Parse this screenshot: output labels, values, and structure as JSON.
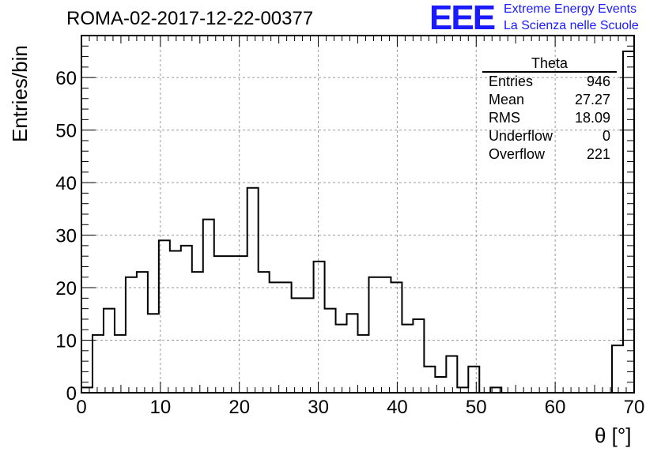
{
  "header": {
    "title": "ROMA-02-2017-12-22-00377",
    "logo_text": "EEE",
    "logo_line1": "Extreme Energy Events",
    "logo_line2": "La Scienza nelle Scuole"
  },
  "colors": {
    "logo": "#1a1aff",
    "grid": "#9a9a9a",
    "hist": "#000000"
  },
  "stats": {
    "title": "Theta",
    "rows": [
      {
        "label": "Entries",
        "value": "946"
      },
      {
        "label": "Mean",
        "value": "27.27"
      },
      {
        "label": "RMS",
        "value": "18.09"
      },
      {
        "label": "Underflow",
        "value": "0"
      },
      {
        "label": "Overflow",
        "value": "221"
      }
    ]
  },
  "chart_data": {
    "type": "bar",
    "xlabel": "θ [°]",
    "ylabel": "Entries/bin",
    "xlim": [
      0,
      70
    ],
    "ylim": [
      0,
      68
    ],
    "bin_width": 1.4,
    "xticks": [
      0,
      10,
      20,
      30,
      40,
      50,
      60,
      70
    ],
    "yticks": [
      0,
      10,
      20,
      30,
      40,
      50,
      60
    ],
    "grid": true,
    "values": [
      1,
      11,
      16,
      11,
      22,
      23,
      15,
      29,
      27,
      28,
      23,
      33,
      26,
      26,
      26,
      39,
      23,
      21,
      21,
      18,
      18,
      25,
      16,
      13,
      15,
      11,
      22,
      22,
      21,
      13,
      14,
      5,
      3,
      7,
      1,
      5,
      0,
      1,
      0,
      0,
      0,
      0,
      0,
      0,
      0,
      0,
      0,
      0,
      9,
      65
    ]
  }
}
